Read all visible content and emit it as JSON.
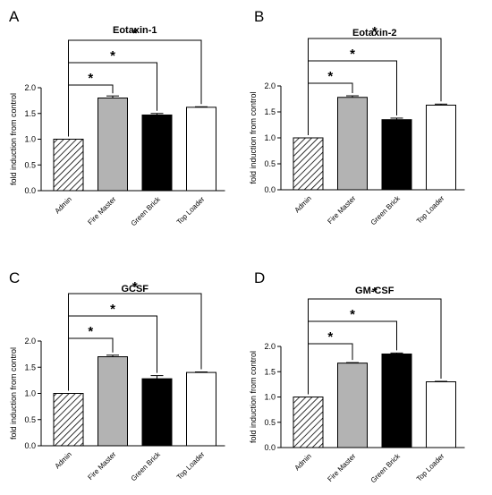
{
  "chart_data": [
    {
      "panel": "A",
      "type": "bar",
      "title": "Eotaxin-1",
      "ylabel": "fold induction from control",
      "xlabel": "",
      "categories": [
        "Admin",
        "Fire Master",
        "Green Brick",
        "Top Loader"
      ],
      "values": [
        1.0,
        1.8,
        1.47,
        1.62
      ],
      "errors": [
        0.0,
        0.04,
        0.03,
        0.01
      ],
      "fills": [
        "hatch",
        "#b3b3b3",
        "#000000",
        "#ffffff"
      ],
      "ylim": [
        0,
        2.0
      ],
      "yticks": [
        "0.0",
        "0.5",
        "1.0",
        "1.5",
        "2.0"
      ],
      "significance": [
        {
          "from": "Admin",
          "to": "Fire Master",
          "label": "*"
        },
        {
          "from": "Admin",
          "to": "Green Brick",
          "label": "*"
        },
        {
          "from": "Admin",
          "to": "Top Loader",
          "label": "*"
        }
      ],
      "grid": false
    },
    {
      "panel": "B",
      "type": "bar",
      "title": "Eotaxin-2",
      "ylabel": "fold induction from control",
      "xlabel": "",
      "categories": [
        "Admin",
        "Fire Master",
        "Green Brick",
        "Top Loader"
      ],
      "values": [
        1.0,
        1.78,
        1.35,
        1.63
      ],
      "errors": [
        0.0,
        0.03,
        0.03,
        0.02
      ],
      "fills": [
        "hatch",
        "#b3b3b3",
        "#000000",
        "#ffffff"
      ],
      "ylim": [
        0,
        2.0
      ],
      "yticks": [
        "0.0",
        "0.5",
        "1.0",
        "1.5",
        "2.0"
      ],
      "significance": [
        {
          "from": "Admin",
          "to": "Fire Master",
          "label": "*"
        },
        {
          "from": "Admin",
          "to": "Green Brick",
          "label": "*"
        },
        {
          "from": "Admin",
          "to": "Top Loader",
          "label": "*"
        }
      ],
      "grid": false
    },
    {
      "panel": "C",
      "type": "bar",
      "title": "GCSF",
      "ylabel": "fold induction from control",
      "xlabel": "",
      "categories": [
        "Admin",
        "Fire Master",
        "Green Brick",
        "Top Loader"
      ],
      "values": [
        1.0,
        1.7,
        1.28,
        1.4
      ],
      "errors": [
        0.0,
        0.03,
        0.06,
        0.01
      ],
      "fills": [
        "hatch",
        "#b3b3b3",
        "#000000",
        "#ffffff"
      ],
      "ylim": [
        0,
        2.0
      ],
      "yticks": [
        "0.0",
        "0.5",
        "1.0",
        "1.5",
        "2.0"
      ],
      "significance": [
        {
          "from": "Admin",
          "to": "Fire Master",
          "label": "*"
        },
        {
          "from": "Admin",
          "to": "Green Brick",
          "label": "*"
        },
        {
          "from": "Admin",
          "to": "Top Loader",
          "label": "*"
        }
      ],
      "grid": false
    },
    {
      "panel": "D",
      "type": "bar",
      "title": "GM-CSF",
      "ylabel": "fold induction from control",
      "xlabel": "",
      "categories": [
        "Admin",
        "Fire Master",
        "Green Brick",
        "Top Loader"
      ],
      "values": [
        1.0,
        1.67,
        1.85,
        1.3
      ],
      "errors": [
        0.0,
        0.01,
        0.02,
        0.01
      ],
      "fills": [
        "hatch",
        "#b3b3b3",
        "#000000",
        "#ffffff"
      ],
      "ylim": [
        0,
        2.0
      ],
      "yticks": [
        "0.0",
        "0.5",
        "1.0",
        "1.5",
        "2.0"
      ],
      "significance": [
        {
          "from": "Admin",
          "to": "Fire Master",
          "label": "*"
        },
        {
          "from": "Admin",
          "to": "Green Brick",
          "label": "*"
        },
        {
          "from": "Admin",
          "to": "Top Loader",
          "label": "*"
        }
      ],
      "grid": false
    }
  ]
}
